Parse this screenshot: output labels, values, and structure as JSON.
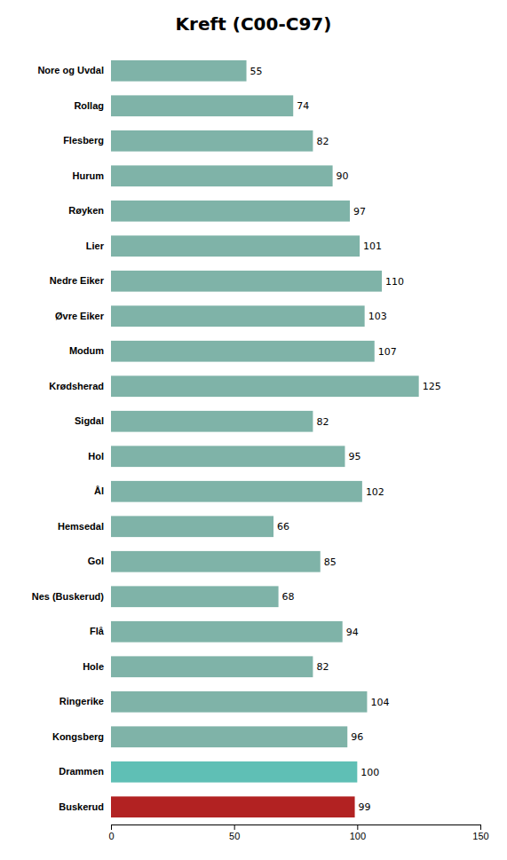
{
  "chart_data": {
    "type": "bar",
    "orientation": "horizontal",
    "title": "Kreft (C00-C97)",
    "categories": [
      "Nore og Uvdal",
      "Rollag",
      "Flesberg",
      "Hurum",
      "Røyken",
      "Lier",
      "Nedre Eiker",
      "Øvre Eiker",
      "Modum",
      "Krødsherad",
      "Sigdal",
      "Hol",
      "Ål",
      "Hemsedal",
      "Gol",
      "Nes (Buskerud)",
      "Flå",
      "Hole",
      "Ringerike",
      "Kongsberg",
      "Drammen",
      "Buskerud"
    ],
    "values": [
      55,
      74,
      82,
      90,
      97,
      101,
      110,
      103,
      107,
      125,
      82,
      95,
      102,
      66,
      85,
      68,
      94,
      82,
      104,
      96,
      100,
      99
    ],
    "colors": [
      "#7fb3a8",
      "#7fb3a8",
      "#7fb3a8",
      "#7fb3a8",
      "#7fb3a8",
      "#7fb3a8",
      "#7fb3a8",
      "#7fb3a8",
      "#7fb3a8",
      "#7fb3a8",
      "#7fb3a8",
      "#7fb3a8",
      "#7fb3a8",
      "#7fb3a8",
      "#7fb3a8",
      "#7fb3a8",
      "#7fb3a8",
      "#7fb3a8",
      "#7fb3a8",
      "#7fb3a8",
      "#5fbfb5",
      "#b22222"
    ],
    "xlim": [
      0,
      150
    ],
    "xticks": [
      0,
      50,
      100,
      150
    ],
    "data_labels": true,
    "grid": false
  }
}
